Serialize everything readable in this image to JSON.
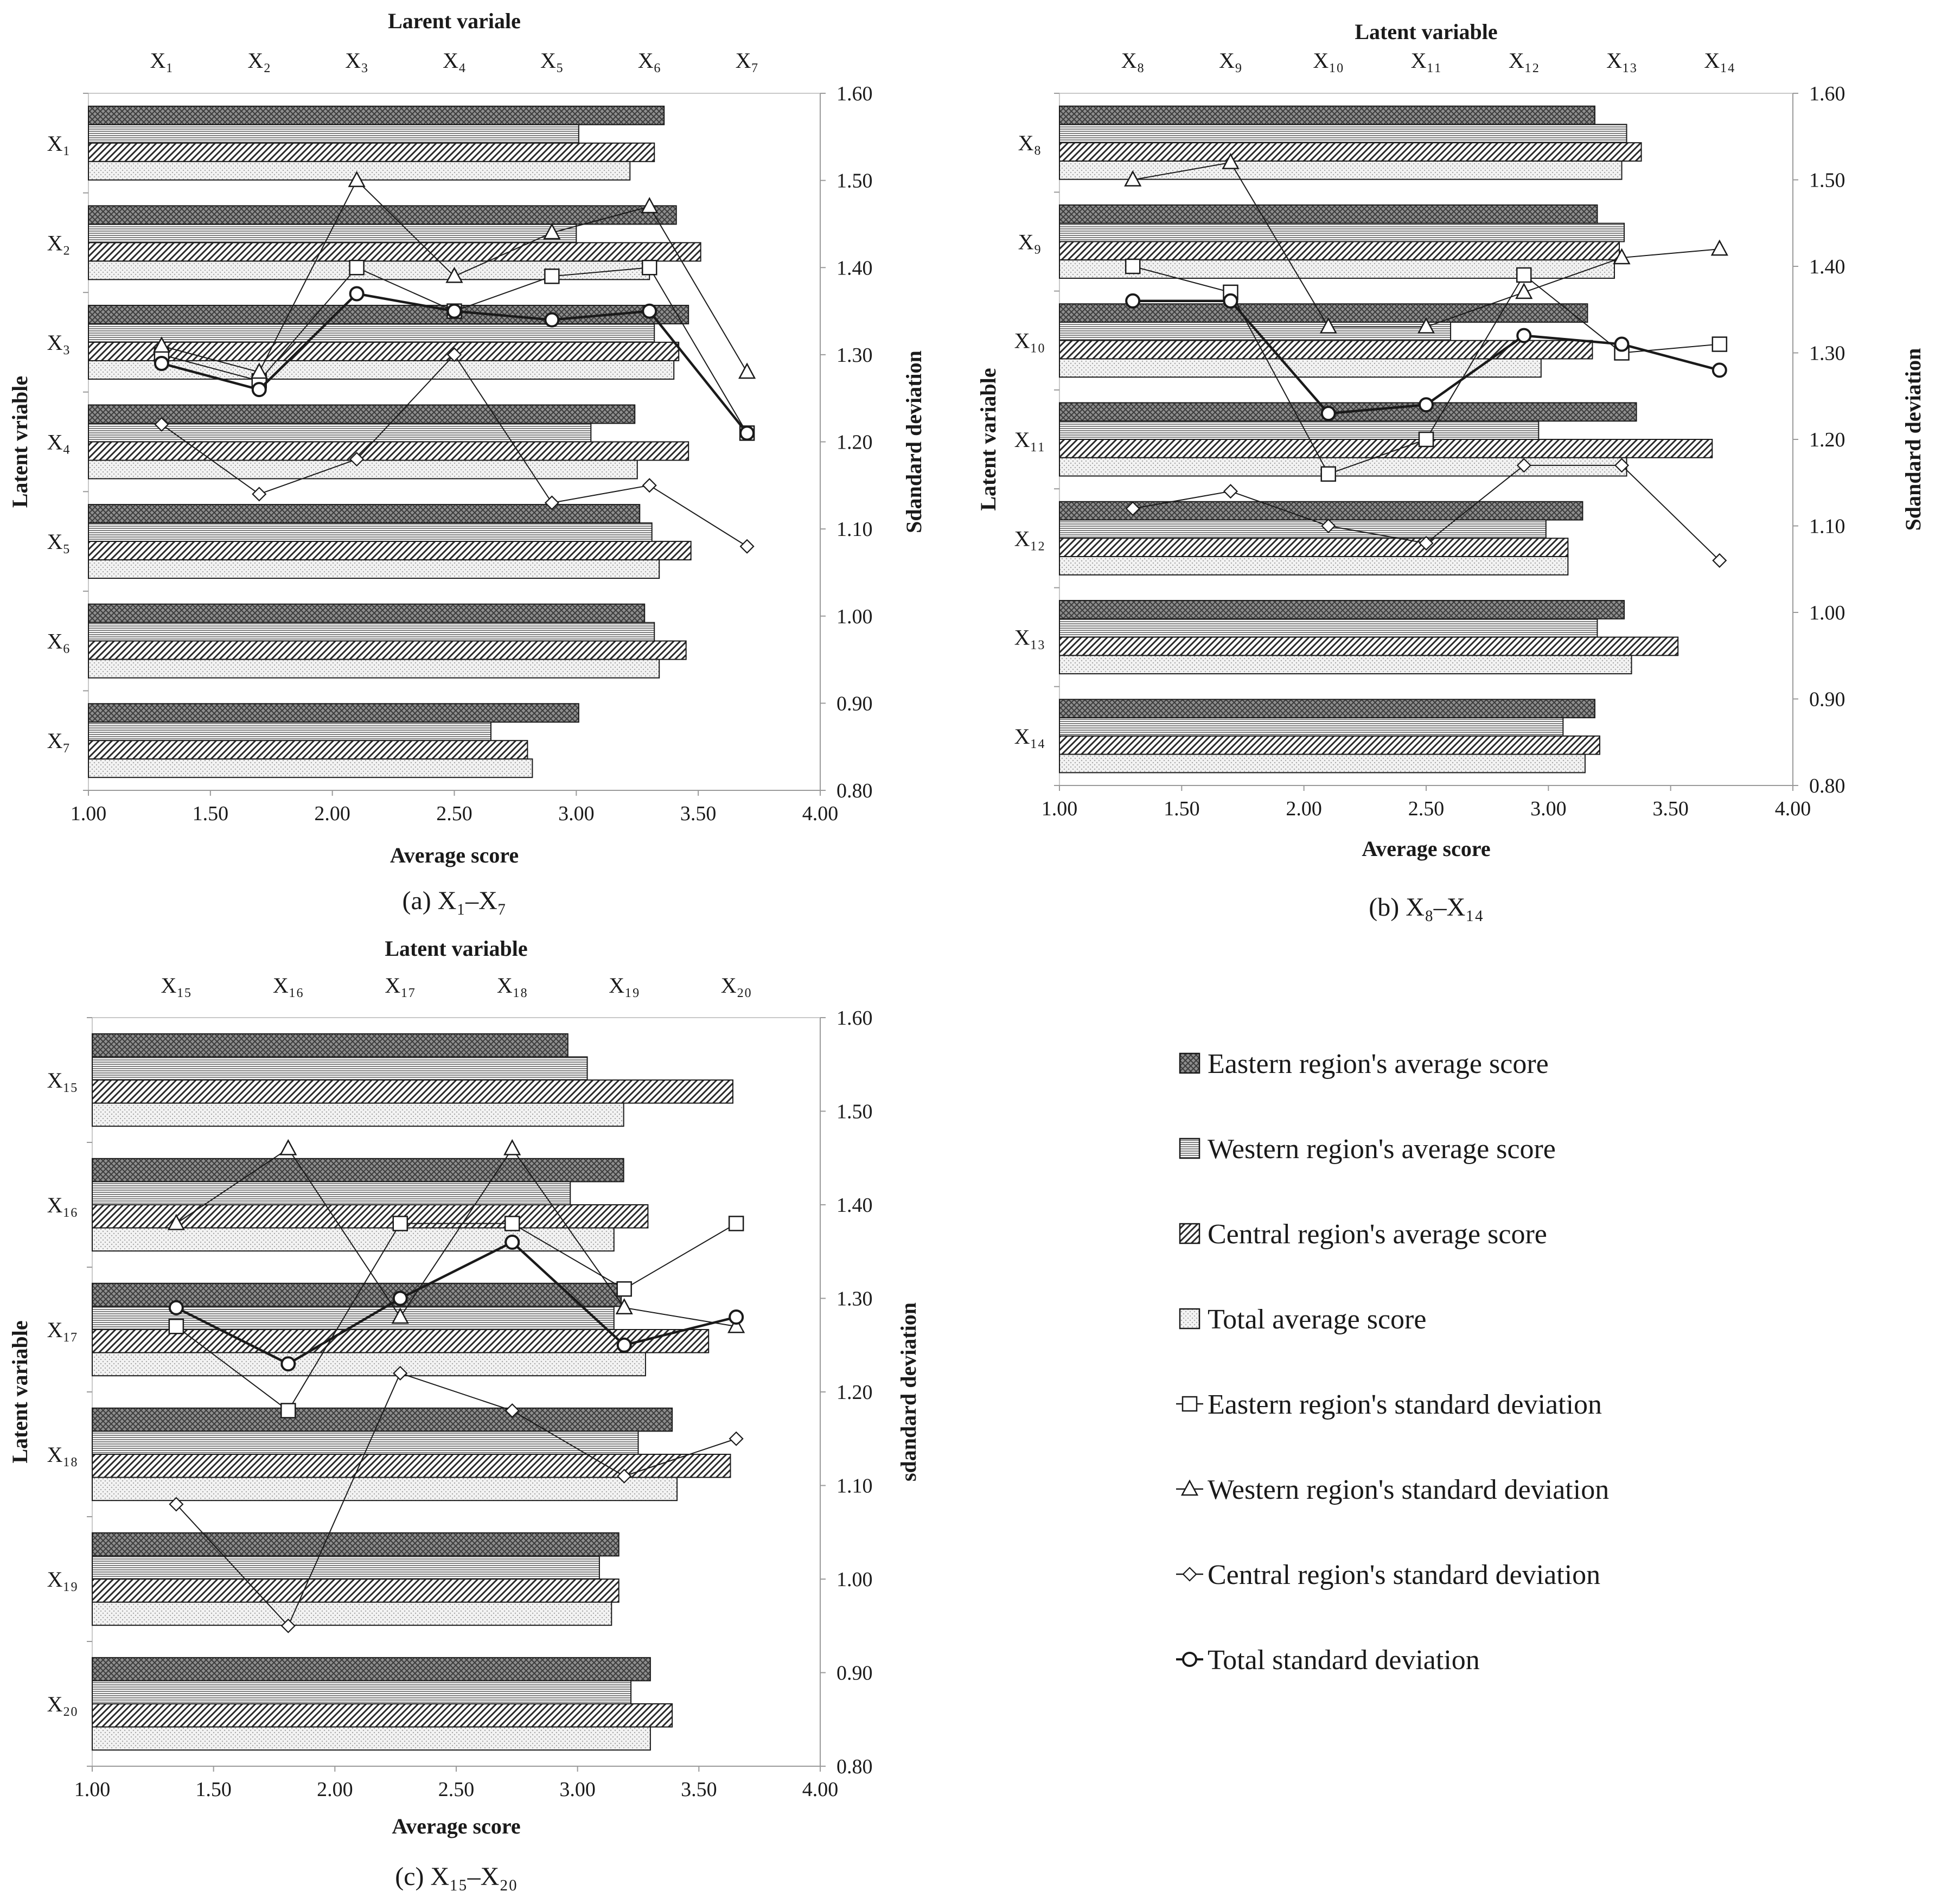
{
  "legend": {
    "entries": [
      {
        "key": "east_avg",
        "label": "Eastern region's average score",
        "kind": "bar",
        "pattern": "pat-east"
      },
      {
        "key": "west_avg",
        "label": "Western region's average score",
        "kind": "bar",
        "pattern": "pat-west"
      },
      {
        "key": "cent_avg",
        "label": "Central region's average score",
        "kind": "bar",
        "pattern": "pat-cent"
      },
      {
        "key": "total_avg",
        "label": "Total average score",
        "kind": "bar",
        "pattern": "pat-total"
      },
      {
        "key": "east_sd",
        "label": "Eastern region's standard deviation",
        "kind": "line",
        "marker": "square"
      },
      {
        "key": "west_sd",
        "label": "Western region's standard deviation",
        "kind": "line",
        "marker": "triangle"
      },
      {
        "key": "cent_sd",
        "label": "Central region's standard deviation",
        "kind": "line",
        "marker": "diamond"
      },
      {
        "key": "total_sd",
        "label": "Total standard deviation",
        "kind": "line",
        "marker": "circle"
      }
    ]
  },
  "chart_data": [
    {
      "type": "bar",
      "caption": "(a)  X₁–X₇",
      "top_title": "Larent  variale",
      "xlabel": "Average score",
      "ylabel": "Latent  vriable",
      "ylabel_right": "Sdandard  deviation",
      "xlim": [
        1.0,
        4.0
      ],
      "xticks": [
        "1.00",
        "1.50",
        "2.00",
        "2.50",
        "3.00",
        "3.50",
        "4.00"
      ],
      "y2lim": [
        0.8,
        1.6
      ],
      "y2ticks": [
        "0.80",
        "0.90",
        "1.00",
        "1.10",
        "1.20",
        "1.30",
        "1.40",
        "1.50",
        "1.60"
      ],
      "categories": [
        "X₁",
        "X₂",
        "X₃",
        "X₄",
        "X₅",
        "X₆",
        "X₇"
      ],
      "bar_series": [
        {
          "name": "Eastern region's average score",
          "values": [
            3.36,
            3.41,
            3.46,
            3.24,
            3.26,
            3.28,
            3.01
          ]
        },
        {
          "name": "Western region's average score",
          "values": [
            3.01,
            3.0,
            3.32,
            3.06,
            3.31,
            3.32,
            2.65
          ]
        },
        {
          "name": "Central region's average score",
          "values": [
            3.32,
            3.51,
            3.42,
            3.46,
            3.47,
            3.45,
            2.8
          ]
        },
        {
          "name": "Total average score",
          "values": [
            3.22,
            3.3,
            3.4,
            3.25,
            3.34,
            3.34,
            2.82
          ]
        }
      ],
      "line_series": [
        {
          "name": "Eastern region's standard deviation",
          "values": [
            1.3,
            1.27,
            1.4,
            1.35,
            1.39,
            1.4,
            1.21
          ]
        },
        {
          "name": "Western region's standard deviation",
          "values": [
            1.31,
            1.28,
            1.5,
            1.39,
            1.44,
            1.47,
            1.28
          ]
        },
        {
          "name": "Central region's standard deviation",
          "values": [
            1.22,
            1.14,
            1.18,
            1.3,
            1.13,
            1.15,
            1.08
          ]
        },
        {
          "name": "Total standard deviation",
          "values": [
            1.29,
            1.26,
            1.37,
            1.35,
            1.34,
            1.35,
            1.21
          ]
        }
      ]
    },
    {
      "type": "bar",
      "caption": "(b)  X₈–X₁₄",
      "top_title": "Latent  variable",
      "xlabel": "Average score",
      "ylabel": "Latent variable",
      "ylabel_right": "Sdandard  deviation",
      "xlim": [
        1.0,
        4.0
      ],
      "xticks": [
        "1.00",
        "1.50",
        "2.00",
        "2.50",
        "3.00",
        "3.50",
        "4.00"
      ],
      "y2lim": [
        0.8,
        1.6
      ],
      "y2ticks": [
        "0.80",
        "0.90",
        "1.00",
        "1.10",
        "1.20",
        "1.30",
        "1.40",
        "1.50",
        "1.60"
      ],
      "categories": [
        "X₈",
        "X₉",
        "X₁₀",
        "X₁₁",
        "X₁₂",
        "X₁₃",
        "X₁₄"
      ],
      "bar_series": [
        {
          "name": "Eastern region's average score",
          "values": [
            3.19,
            3.2,
            3.16,
            3.36,
            3.14,
            3.31,
            3.19
          ]
        },
        {
          "name": "Western region's average score",
          "values": [
            3.32,
            3.31,
            2.6,
            2.96,
            2.99,
            3.2,
            3.06
          ]
        },
        {
          "name": "Central region's average score",
          "values": [
            3.38,
            3.29,
            3.18,
            3.67,
            3.08,
            3.53,
            3.21
          ]
        },
        {
          "name": "Total average score",
          "values": [
            3.3,
            3.27,
            2.97,
            3.32,
            3.08,
            3.34,
            3.15
          ]
        }
      ],
      "line_series": [
        {
          "name": "Eastern region's standard deviation",
          "values": [
            1.4,
            1.37,
            1.16,
            1.2,
            1.39,
            1.3,
            1.31
          ]
        },
        {
          "name": "Western region's standard deviation",
          "values": [
            1.5,
            1.52,
            1.33,
            1.33,
            1.37,
            1.41,
            1.42
          ]
        },
        {
          "name": "Central region's standard deviation",
          "values": [
            1.12,
            1.14,
            1.1,
            1.08,
            1.17,
            1.17,
            1.06
          ]
        },
        {
          "name": "Total standard deviation",
          "values": [
            1.36,
            1.36,
            1.23,
            1.24,
            1.32,
            1.31,
            1.28
          ]
        }
      ]
    },
    {
      "type": "bar",
      "caption": "(c)  X₁₅–X₂₀",
      "top_title": "Latent  variable",
      "xlabel": "Average  score",
      "ylabel": "Latent  variable",
      "ylabel_right": "sdandard  deviation",
      "xlim": [
        1.0,
        4.0
      ],
      "xticks": [
        "1.00",
        "1.50",
        "2.00",
        "2.50",
        "3.00",
        "3.50",
        "4.00"
      ],
      "y2lim": [
        0.8,
        1.6
      ],
      "y2ticks": [
        "0.80",
        "0.90",
        "1.00",
        "1.10",
        "1.20",
        "1.30",
        "1.40",
        "1.50",
        "1.60"
      ],
      "categories": [
        "X₁₅",
        "X₁₆",
        "X₁₇",
        "X₁₈",
        "X₁₉",
        "X₂₀"
      ],
      "bar_series": [
        {
          "name": "Eastern region's average score",
          "values": [
            2.96,
            3.19,
            3.18,
            3.39,
            3.17,
            3.3
          ]
        },
        {
          "name": "Western region's average score",
          "values": [
            3.04,
            2.97,
            3.15,
            3.25,
            3.09,
            3.22
          ]
        },
        {
          "name": "Central region's average score",
          "values": [
            3.64,
            3.29,
            3.54,
            3.63,
            3.17,
            3.39
          ]
        },
        {
          "name": "Total average score",
          "values": [
            3.19,
            3.15,
            3.28,
            3.41,
            3.14,
            3.3
          ]
        }
      ],
      "line_series": [
        {
          "name": "Eastern region's standard deviation",
          "values": [
            1.27,
            1.18,
            1.38,
            1.38,
            1.31,
            1.38
          ]
        },
        {
          "name": "Western region's standard deviation",
          "values": [
            1.38,
            1.46,
            1.28,
            1.46,
            1.29,
            1.27
          ]
        },
        {
          "name": "Central region's standard deviation",
          "values": [
            1.08,
            0.95,
            1.22,
            1.18,
            1.11,
            1.15
          ]
        },
        {
          "name": "Total standard deviation",
          "values": [
            1.29,
            1.23,
            1.3,
            1.36,
            1.25,
            1.28
          ]
        }
      ]
    }
  ]
}
